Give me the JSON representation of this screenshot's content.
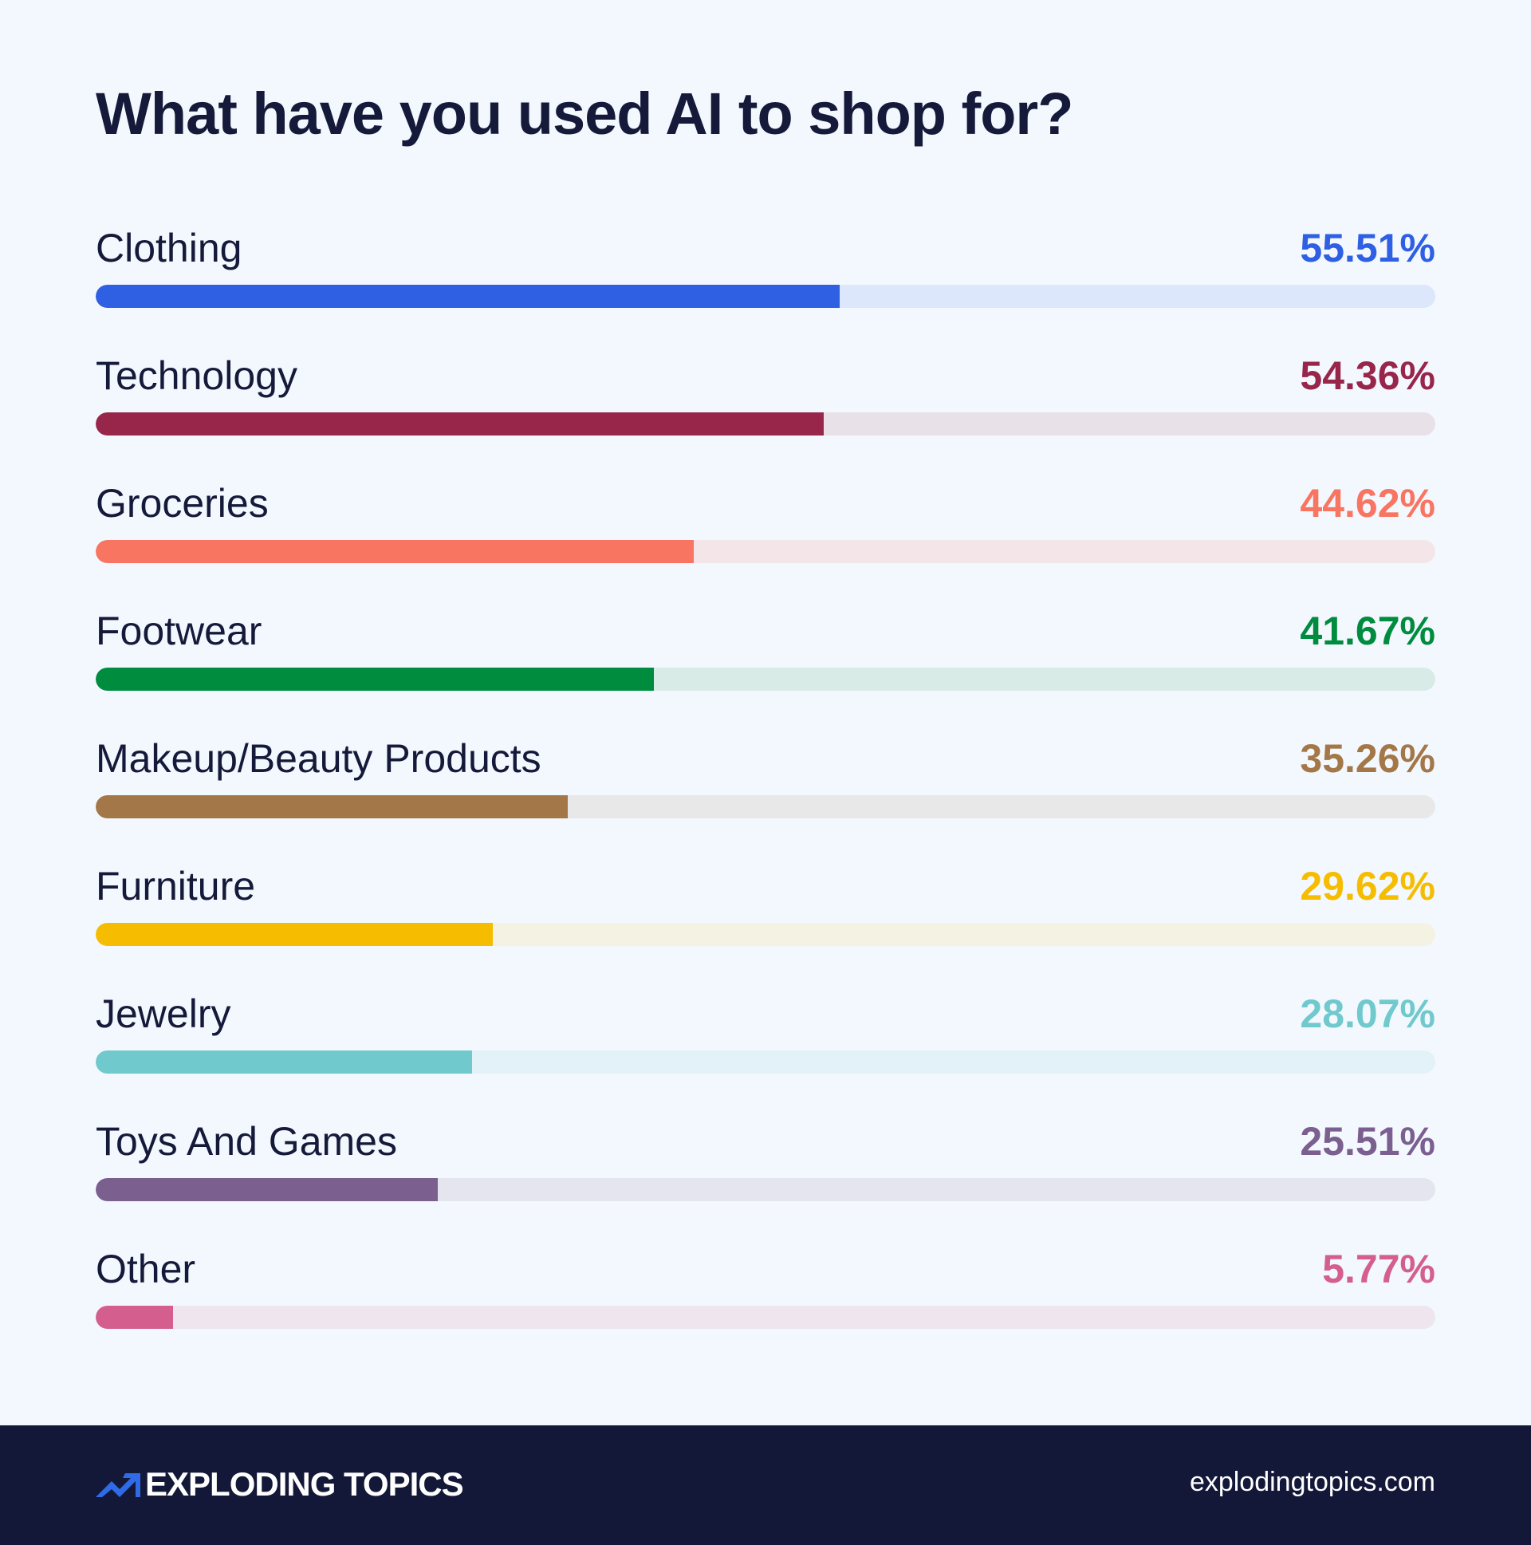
{
  "title": "What have you used AI to shop for?",
  "chart_data": {
    "type": "bar",
    "orientation": "horizontal",
    "title": "What have you used AI to shop for?",
    "xlim": [
      0,
      100
    ],
    "unit": "%",
    "categories": [
      "Clothing",
      "Technology",
      "Groceries",
      "Footwear",
      "Makeup/Beauty Products",
      "Furniture",
      "Jewelry",
      "Toys And Games",
      "Other"
    ],
    "values": [
      55.51,
      54.36,
      44.62,
      41.67,
      35.26,
      29.62,
      28.07,
      25.51,
      5.77
    ],
    "labels": [
      "55.51%",
      "54.36%",
      "44.62%",
      "41.67%",
      "35.26%",
      "29.62%",
      "28.07%",
      "25.51%",
      "5.77%"
    ],
    "colors": [
      "#2f5fe3",
      "#97264a",
      "#f87561",
      "#008c3f",
      "#a37748",
      "#f6bd00",
      "#6fc9cd",
      "#7b5f8f",
      "#d45f8f"
    ],
    "track_colors": [
      "#dce7fc",
      "#e8e1e8",
      "#f4e6e8",
      "#d8ebe6",
      "#e8e8e8",
      "#f4f2e2",
      "#e3f2f8",
      "#e4e5ee",
      "#eee5ee"
    ]
  },
  "footer": {
    "brand": "EXPLODING TOPICS",
    "brand_color": "#2f6be6",
    "url": "explodingtopics.com",
    "logo_icon": "trend-arrow-icon"
  }
}
